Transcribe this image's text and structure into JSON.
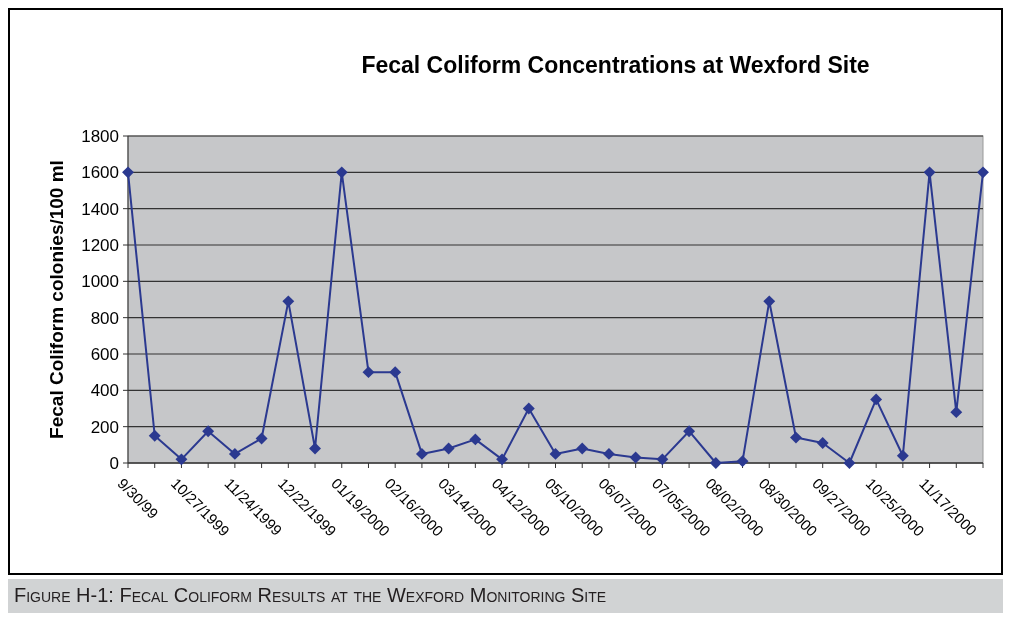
{
  "chart_data": {
    "type": "line",
    "title": "Fecal Coliform Concentrations at Wexford Site",
    "ylabel": "Fecal Coliform colonies/100 ml",
    "annotations": [
      "Figure H-1: Fecal Coliform Results at the Wexford Monitoring Site"
    ],
    "categories": [
      "9/30/99",
      null,
      "10/27/1999",
      null,
      "11/24/1999",
      null,
      "12/22/1999",
      null,
      "01/19/2000",
      null,
      "02/16/2000",
      null,
      "03/14/2000",
      null,
      "04/12/2000",
      null,
      "05/10/2000",
      null,
      "06/07/2000",
      null,
      "07/05/2000",
      null,
      "08/02/2000",
      null,
      "08/30/2000",
      null,
      "09/27/2000",
      null,
      "10/25/2000",
      null,
      "11/17/2000",
      null,
      null
    ],
    "series": [
      {
        "color": "#2b3990",
        "values": [
          1600,
          150,
          20,
          175,
          50,
          135,
          890,
          80,
          1600,
          500,
          500,
          50,
          80,
          130,
          20,
          300,
          50,
          80,
          50,
          30,
          20,
          175,
          0,
          10,
          890,
          140,
          110,
          0,
          350,
          40,
          1600,
          280,
          1600
        ]
      }
    ],
    "ylim": [
      0,
      1800
    ],
    "yticks": [
      0,
      200,
      400,
      600,
      800,
      1000,
      1200,
      1400,
      1600,
      1800
    ],
    "grid": "y",
    "marker": "diamond",
    "line_style": "solid"
  }
}
